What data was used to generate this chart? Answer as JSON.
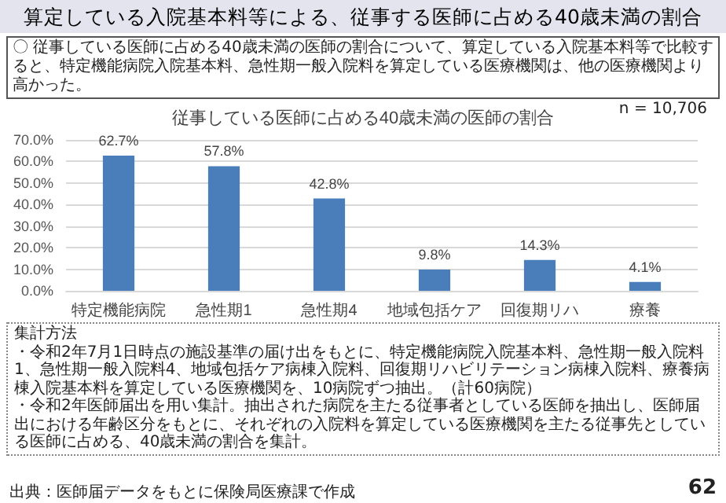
{
  "chart_data": {
    "type": "bar",
    "title": "算定している入院基本料等による、従事する医師に占める40歳未満の割合",
    "subtitle": "従事している医師に占める40歳未満の医師の割合",
    "categories": [
      "特定機能病院",
      "急性期1",
      "急性期4",
      "地域包括ケア",
      "回復期リハ",
      "療養"
    ],
    "values": [
      62.7,
      57.8,
      42.8,
      9.8,
      14.3,
      4.1
    ],
    "value_labels": [
      "62.7%",
      "57.8%",
      "42.8%",
      "9.8%",
      "14.3%",
      "4.1%"
    ],
    "color": "#4a7ebb",
    "ylim": [
      0,
      70
    ],
    "yticks": [
      {
        "value": 0,
        "label": "0.0%"
      },
      {
        "value": 10,
        "label": "10.0%"
      },
      {
        "value": 20,
        "label": "20.0%"
      },
      {
        "value": 30,
        "label": "30.0%"
      },
      {
        "value": 40,
        "label": "40.0%"
      },
      {
        "value": 50,
        "label": "50.0%"
      },
      {
        "value": 60,
        "label": "60.0%"
      },
      {
        "value": 70,
        "label": "70.0%"
      }
    ],
    "grid": "y",
    "annotations": [
      "〇 従事している医師に占める40歳未満の医師の割合について、算定している入院基本料等で比較すると、特定機能病院入院基本料、急性期一般入院料を算定している医療機関は、他の医療機関より高かった。",
      "n = 10,706",
      "集計方法",
      "・令和2年7月1日時点の施設基準の届け出をもとに、特定機能病院入院基本料、急性期一般入院料1、急性期一般入院料4、地域包括ケア病棟入院料、回復期リハビリテーション病棟入院料、療養病棟入院基本料を算定している医療機関を、10病院ずつ抽出。（計60病院）",
      "・令和2年医師届出を用い集計。抽出された病院を主たる従事者としている医師を抽出し、医師届出における年齢区分をもとに、それぞれの入院料を算定している医療機関を主たる従事先としている医師に占める、40歳未満の割合を集計。",
      "出典：医師届データをもとに保険局医療課で作成",
      "62"
    ]
  }
}
